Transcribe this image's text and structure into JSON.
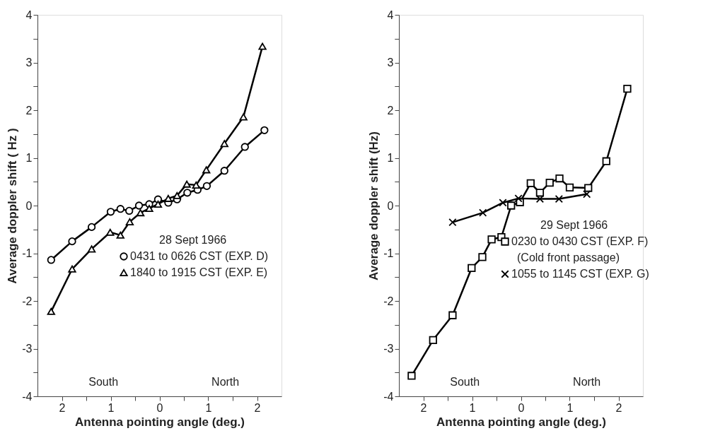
{
  "chart_data": [
    {
      "type": "line",
      "xlabel": "Antenna pointing angle  (deg.)",
      "ylabel": "Average doppler shift ( Hz )",
      "legend_title": "28 Sept 1966",
      "legend": "right",
      "line_style": "solid",
      "grid": false,
      "xlim": [
        -2.5,
        2.5
      ],
      "xticks": [
        {
          "value": -2,
          "label": "2"
        },
        {
          "value": -1.5,
          "label": null
        },
        {
          "value": -1,
          "label": "1"
        },
        {
          "value": -0.5,
          "label": null
        },
        0,
        {
          "value": 0.5,
          "label": null
        },
        1,
        {
          "value": 1.5,
          "label": null
        },
        2
      ],
      "ylim": [
        -4,
        4
      ],
      "yticks": [
        -4,
        {
          "value": -3.5,
          "label": null
        },
        -3,
        {
          "value": -2.5,
          "label": null
        },
        -2,
        {
          "value": -1.5,
          "label": null
        },
        -1,
        {
          "value": -0.5,
          "label": null
        },
        0,
        {
          "value": 0.5,
          "label": null
        },
        1,
        {
          "value": 1.5,
          "label": null
        },
        2,
        {
          "value": 2.5,
          "label": null
        },
        3,
        {
          "value": 3.5,
          "label": null
        },
        4
      ],
      "annotations": [
        "South",
        "North"
      ],
      "series": [
        {
          "name": "0431 to 0626 CST (EXP. D)",
          "color": "#000000",
          "marker": "circle",
          "x": [
            -2.22,
            -1.79,
            -1.39,
            -1.0,
            -0.8,
            -0.62,
            -0.42,
            -0.21,
            -0.03,
            0.18,
            0.36,
            0.57,
            0.78,
            0.97,
            1.33,
            1.75,
            2.15
          ],
          "values": [
            -1.14,
            -0.75,
            -0.45,
            -0.13,
            -0.07,
            -0.11,
            0.0,
            0.03,
            0.13,
            0.06,
            0.13,
            0.27,
            0.33,
            0.41,
            0.73,
            1.23,
            1.58
          ]
        },
        {
          "name": "1840 to 1915 CST (EXP. E)",
          "color": "#000000",
          "marker": "triangle",
          "x": [
            -2.22,
            -1.79,
            -1.39,
            -1.01,
            -0.8,
            -0.61,
            -0.39,
            -0.21,
            -0.03,
            0.18,
            0.36,
            0.56,
            0.75,
            0.96,
            1.33,
            1.72,
            2.11
          ],
          "values": [
            -2.22,
            -1.33,
            -0.91,
            -0.56,
            -0.62,
            -0.34,
            -0.15,
            -0.06,
            0.03,
            0.15,
            0.21,
            0.45,
            0.43,
            0.75,
            1.3,
            1.86,
            3.34
          ]
        }
      ]
    },
    {
      "type": "line",
      "xlabel": "Antenna pointing angle  (deg.)",
      "ylabel": "Average doppler shift (Hz)",
      "legend_title": "29 Sept 1966",
      "legend": "right",
      "line_style": "solid",
      "grid": false,
      "xlim": [
        -2.5,
        2.5
      ],
      "xticks": [
        {
          "value": -2,
          "label": "2"
        },
        {
          "value": -1.5,
          "label": null
        },
        {
          "value": -1,
          "label": "1"
        },
        {
          "value": -0.5,
          "label": null
        },
        0,
        {
          "value": 0.5,
          "label": null
        },
        1,
        {
          "value": 1.5,
          "label": null
        },
        2
      ],
      "ylim": [
        -4,
        4
      ],
      "yticks": [
        -4,
        {
          "value": -3.5,
          "label": null
        },
        -3,
        {
          "value": -2.5,
          "label": null
        },
        -2,
        {
          "value": -1.5,
          "label": null
        },
        -1,
        {
          "value": -0.5,
          "label": null
        },
        0,
        {
          "value": 0.5,
          "label": null
        },
        1,
        {
          "value": 1.5,
          "label": null
        },
        2,
        {
          "value": 2.5,
          "label": null
        },
        3,
        {
          "value": 3.5,
          "label": null
        },
        4
      ],
      "annotations": [
        "South",
        "North"
      ],
      "series": [
        {
          "name": "0230 to 0430 CST (EXP. F)\n(Cold front passage)",
          "color": "#000000",
          "marker": "square",
          "x": [
            -2.24,
            -1.8,
            -1.4,
            -1.01,
            -0.79,
            -0.6,
            -0.4,
            -0.2,
            -0.02,
            0.2,
            0.39,
            0.59,
            0.79,
            1.0,
            1.38,
            1.75,
            2.18
          ],
          "values": [
            -3.57,
            -2.82,
            -2.3,
            -1.31,
            -1.08,
            -0.71,
            -0.66,
            0.0,
            0.07,
            0.47,
            0.27,
            0.48,
            0.57,
            0.38,
            0.37,
            0.93,
            2.45
          ]
        },
        {
          "name": "1055 to 1145 CST (EXP. G)",
          "color": "#000000",
          "marker": "cross",
          "x": [
            -1.4,
            -0.78,
            -0.37,
            -0.05,
            0.39,
            0.78,
            1.35
          ],
          "values": [
            -0.35,
            -0.15,
            0.06,
            0.15,
            0.14,
            0.14,
            0.24
          ]
        }
      ]
    }
  ]
}
